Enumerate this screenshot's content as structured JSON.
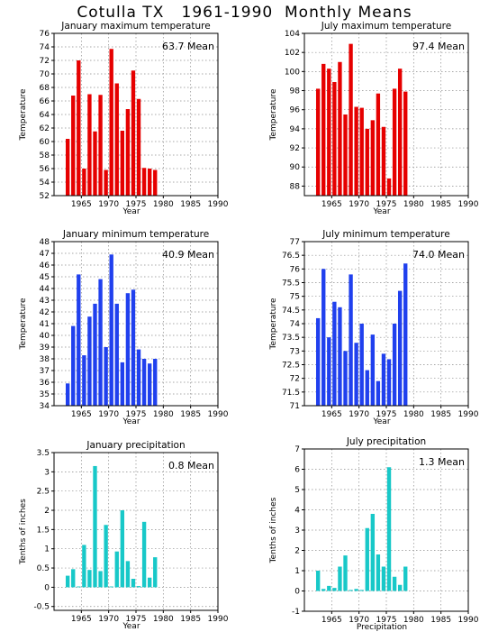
{
  "title": "Cotulla TX   1961-1990  Monthly Means",
  "chart_data": [
    {
      "id": "jan-max",
      "type": "bar",
      "color": "#e60000",
      "title": "January maximum temperature",
      "xlabel": "Year",
      "ylabel": "Temperature",
      "mean_label": "63.7 Mean",
      "xlim": [
        1960,
        1990
      ],
      "ylim": [
        52,
        76
      ],
      "ytick_step": 2,
      "ytick_decimals": 0,
      "xticks": [
        1965,
        1970,
        1975,
        1980,
        1985,
        1990
      ],
      "yticks": [
        "52",
        "54",
        "56",
        "58",
        "60",
        "62",
        "64",
        "66",
        "68",
        "70",
        "72",
        "74",
        "76"
      ],
      "xtick_labels": [
        "1965",
        "1970",
        "1975",
        "1980",
        "1985",
        "1990"
      ],
      "x": [
        1961,
        1962,
        1963,
        1964,
        1965,
        1966,
        1967,
        1968,
        1969,
        1970,
        1971,
        1972,
        1973,
        1974,
        1975,
        1976,
        1977,
        1978,
        1979
      ],
      "values": [
        60.4,
        66.8,
        72.0,
        56.0,
        67.0,
        61.5,
        66.9,
        55.8,
        73.7,
        68.6,
        61.6,
        64.8,
        70.5,
        66.3,
        56.1,
        56.0,
        55.8,
        null,
        null
      ]
    },
    {
      "id": "jul-max",
      "type": "bar",
      "color": "#e60000",
      "title": "July maximum temperature",
      "xlabel": "Year",
      "ylabel": "Temperature",
      "mean_label": "97.4 Mean",
      "xlim": [
        1960,
        1990
      ],
      "ylim": [
        87,
        104
      ],
      "ytick_step": 2,
      "ytick_decimals": 0,
      "xticks": [
        1965,
        1970,
        1975,
        1980,
        1985,
        1990
      ],
      "yticks": [
        "88",
        "90",
        "92",
        "94",
        "96",
        "98",
        "100",
        "102",
        "104"
      ],
      "xtick_labels": [
        "1965",
        "1970",
        "1975",
        "1980",
        "1985",
        "1990"
      ],
      "x": [
        1961,
        1962,
        1963,
        1964,
        1965,
        1966,
        1967,
        1968,
        1969,
        1970,
        1971,
        1972,
        1973,
        1974,
        1975,
        1976,
        1977,
        1978,
        1979
      ],
      "values": [
        98.2,
        100.8,
        100.3,
        98.9,
        101.0,
        95.5,
        102.9,
        96.3,
        96.2,
        94.0,
        94.9,
        97.7,
        94.2,
        88.8,
        98.2,
        100.3,
        97.9,
        null,
        null
      ]
    },
    {
      "id": "jan-min",
      "type": "bar",
      "color": "#2040ee",
      "title": "January minimum temperature",
      "xlabel": "Year",
      "ylabel": "Temperature",
      "mean_label": "40.9 Mean",
      "xlim": [
        1960,
        1990
      ],
      "ylim": [
        34,
        48
      ],
      "ytick_step": 1,
      "ytick_decimals": 0,
      "xticks": [
        1965,
        1970,
        1975,
        1980,
        1985,
        1990
      ],
      "yticks": [
        "34",
        "35",
        "36",
        "37",
        "38",
        "39",
        "40",
        "41",
        "42",
        "43",
        "44",
        "45",
        "46",
        "47",
        "48"
      ],
      "xtick_labels": [
        "1965",
        "1970",
        "1975",
        "1980",
        "1985",
        "1990"
      ],
      "x": [
        1961,
        1962,
        1963,
        1964,
        1965,
        1966,
        1967,
        1968,
        1969,
        1970,
        1971,
        1972,
        1973,
        1974,
        1975,
        1976,
        1977,
        1978,
        1979
      ],
      "values": [
        35.9,
        40.8,
        45.2,
        38.3,
        41.6,
        42.7,
        44.8,
        39.0,
        46.9,
        42.7,
        37.7,
        43.6,
        43.9,
        38.8,
        38.0,
        37.6,
        38.0,
        null,
        null
      ]
    },
    {
      "id": "jul-min",
      "type": "bar",
      "color": "#2040ee",
      "title": "July minimum temperature",
      "xlabel": "Year",
      "ylabel": "Temperature",
      "mean_label": "74.0 Mean",
      "xlim": [
        1960,
        1990
      ],
      "ylim": [
        71,
        77
      ],
      "ytick_step": 0.5,
      "ytick_decimals": 1,
      "xticks": [
        1965,
        1970,
        1975,
        1980,
        1985,
        1990
      ],
      "yticks": [
        "71",
        "71.5",
        "72",
        "72.5",
        "73",
        "73.5",
        "74",
        "74.5",
        "75",
        "75.5",
        "76",
        "76.5",
        "77"
      ],
      "xtick_labels": [
        "1965",
        "1970",
        "1975",
        "1980",
        "1985",
        "1990"
      ],
      "x": [
        1961,
        1962,
        1963,
        1964,
        1965,
        1966,
        1967,
        1968,
        1969,
        1970,
        1971,
        1972,
        1973,
        1974,
        1975,
        1976,
        1977,
        1978,
        1979
      ],
      "values": [
        74.2,
        76.0,
        73.5,
        74.8,
        74.6,
        73.0,
        75.8,
        73.3,
        74.0,
        72.3,
        73.6,
        71.9,
        72.9,
        72.7,
        74.0,
        75.2,
        76.2,
        null,
        null
      ]
    },
    {
      "id": "jan-prcp",
      "type": "bar",
      "color": "#18c8c8",
      "title": "January precipitation",
      "xlabel": "Year",
      "ylabel": "Tenths of inches",
      "mean_label": "0.8 Mean",
      "xlim": [
        1960,
        1990
      ],
      "ylim": [
        -0.6,
        3.5
      ],
      "ytick_step": 0.5,
      "ytick_decimals": 1,
      "xticks": [
        1965,
        1970,
        1975,
        1980,
        1985,
        1990
      ],
      "yticks": [
        "-0.5",
        "0",
        "0.5",
        "1",
        "1.5",
        "2",
        "2.5",
        "3",
        "3.5"
      ],
      "xtick_labels": [
        "1965",
        "1970",
        "1975",
        "1980",
        "1985",
        "1990"
      ],
      "x": [
        1961,
        1962,
        1963,
        1964,
        1965,
        1966,
        1967,
        1968,
        1969,
        1970,
        1971,
        1972,
        1973,
        1974,
        1975,
        1976,
        1977,
        1978,
        1979
      ],
      "values": [
        0.3,
        0.47,
        0.02,
        1.1,
        0.45,
        3.15,
        0.42,
        1.62,
        0.02,
        0.93,
        2.0,
        0.68,
        0.22,
        0.03,
        1.7,
        0.25,
        0.78,
        null,
        null
      ]
    },
    {
      "id": "jul-prcp",
      "type": "bar",
      "color": "#18c8c8",
      "title": "July precipitation",
      "xlabel": "Precipitation",
      "ylabel": "Tenths of inches",
      "mean_label": "1.3 Mean",
      "xlim": [
        1960,
        1990
      ],
      "ylim": [
        -1,
        7
      ],
      "ytick_step": 1,
      "ytick_decimals": 0,
      "xticks": [
        1965,
        1970,
        1975,
        1980,
        1985,
        1990
      ],
      "yticks": [
        "-1",
        "0",
        "1",
        "2",
        "3",
        "4",
        "5",
        "6",
        "7"
      ],
      "xtick_labels": [
        "1965",
        "1970",
        "1975",
        "1980",
        "1985",
        "1990"
      ],
      "x": [
        1961,
        1962,
        1963,
        1964,
        1965,
        1966,
        1967,
        1968,
        1969,
        1970,
        1971,
        1972,
        1973,
        1974,
        1975,
        1976,
        1977,
        1978,
        1979
      ],
      "values": [
        1.0,
        0.1,
        0.25,
        0.15,
        1.2,
        1.75,
        0.05,
        0.1,
        0.05,
        3.1,
        3.8,
        1.8,
        1.2,
        6.1,
        0.7,
        0.3,
        1.2,
        null,
        null
      ]
    }
  ]
}
